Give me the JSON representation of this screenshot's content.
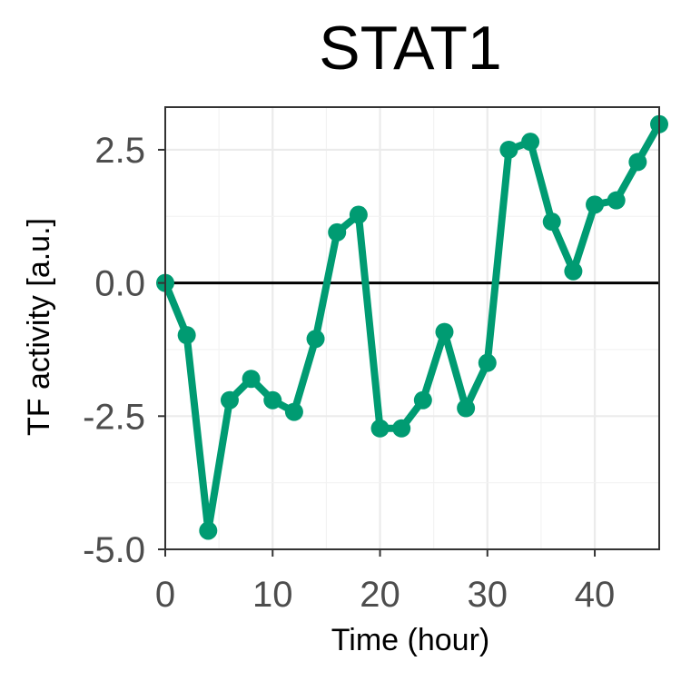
{
  "chart_data": {
    "type": "line",
    "title": "STAT1",
    "xlabel": "Time (hour)",
    "ylabel": "TF activity [a.u.]",
    "xlim": [
      0,
      46
    ],
    "ylim": [
      -5.0,
      3.3
    ],
    "xticks": [
      0,
      10,
      20,
      30,
      40
    ],
    "xtick_labels": [
      "0",
      "10",
      "20",
      "30",
      "40"
    ],
    "yticks": [
      -5.0,
      -2.5,
      0.0,
      2.5
    ],
    "ytick_labels": [
      "-5.0",
      "-2.5",
      "0.0",
      "2.5"
    ],
    "grid": true,
    "reference_line_y": 0,
    "series_color": "#009b72",
    "series": [
      {
        "x": [
          0,
          2,
          4,
          6,
          8,
          10,
          12,
          14,
          16,
          18,
          20,
          22,
          24,
          26,
          28,
          30,
          32,
          34,
          36,
          38,
          40,
          42,
          44,
          46
        ],
        "values": [
          0.0,
          -0.98,
          -4.65,
          -2.2,
          -1.8,
          -2.2,
          -2.42,
          -1.05,
          0.95,
          1.28,
          -2.73,
          -2.73,
          -2.2,
          -0.92,
          -2.35,
          -1.5,
          2.5,
          2.65,
          1.15,
          0.22,
          1.47,
          1.55,
          2.27,
          2.98
        ]
      }
    ]
  }
}
